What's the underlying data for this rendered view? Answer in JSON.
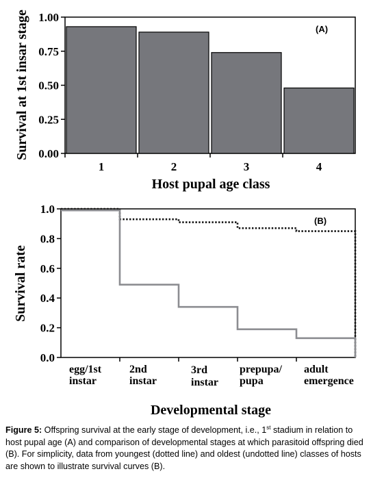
{
  "chart_data": [
    {
      "type": "bar",
      "panel_label": "(A)",
      "title": "",
      "xlabel": "Host pupal age class",
      "ylabel": "Survival at 1st insar stage",
      "categories": [
        "1",
        "2",
        "3",
        "4"
      ],
      "values": [
        0.93,
        0.89,
        0.74,
        0.48
      ],
      "ylim": [
        0,
        1.0
      ],
      "yticks": [
        "0.00",
        "0.25",
        "0.50",
        "0.75",
        "1.00"
      ],
      "bar_color": "#76777c",
      "grid": false,
      "legend": "none"
    },
    {
      "type": "line",
      "step": true,
      "panel_label": "(B)",
      "title": "",
      "xlabel": "Developmental stage",
      "ylabel": "Survival rate",
      "categories": [
        "egg/1st instar",
        "2nd instar",
        "3rd instar",
        "prepupa/ pupa",
        "adult emergence"
      ],
      "category_lines": [
        [
          "egg/1st",
          "instar"
        ],
        [
          "2nd",
          "instar"
        ],
        [
          "3rd",
          "instar"
        ],
        [
          "prepupa/",
          "pupa"
        ],
        [
          "adult",
          "emergence"
        ]
      ],
      "ylim": [
        0,
        1.0
      ],
      "yticks": [
        "0.0",
        "0.2",
        "0.4",
        "0.6",
        "0.8",
        "1.0"
      ],
      "series": [
        {
          "style": "dotted",
          "color": "#111111",
          "values": [
            1.0,
            0.93,
            0.91,
            0.87,
            0.85
          ]
        },
        {
          "style": "solid",
          "color": "#8c8d91",
          "values": [
            0.99,
            0.49,
            0.34,
            0.19,
            0.13
          ]
        }
      ],
      "grid": false,
      "legend": "none"
    }
  ],
  "caption": {
    "label": "Figure 5:",
    "text_before_sup": " Offspring survival at the early stage of development, i.e., 1",
    "sup": "st",
    "text_after_sup": " stadium in relation to host pupal age (A) and comparison of developmental stages at which parasitoid offspring died (B). For simplicity, data from youngest (dotted line) and oldest (undotted line) classes of hosts are shown to illustrate survival curves (B)."
  }
}
